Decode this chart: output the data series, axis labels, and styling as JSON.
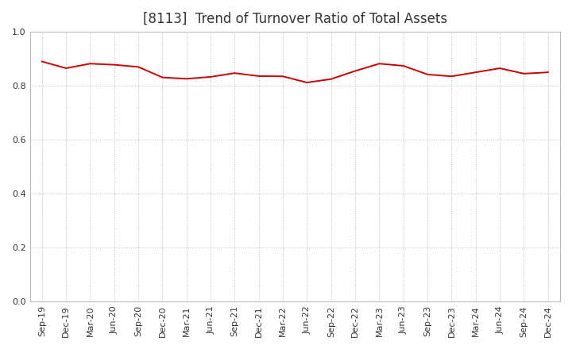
{
  "title": "[8113]  Trend of Turnover Ratio of Total Assets",
  "x_labels": [
    "Sep-19",
    "Dec-19",
    "Mar-20",
    "Jun-20",
    "Sep-20",
    "Dec-20",
    "Mar-21",
    "Jun-21",
    "Sep-21",
    "Dec-21",
    "Mar-22",
    "Jun-22",
    "Sep-22",
    "Dec-22",
    "Mar-23",
    "Jun-23",
    "Sep-23",
    "Dec-23",
    "Mar-24",
    "Jun-24",
    "Sep-24",
    "Dec-24"
  ],
  "y_values": [
    0.89,
    0.865,
    0.882,
    0.878,
    0.87,
    0.831,
    0.826,
    0.833,
    0.847,
    0.836,
    0.835,
    0.812,
    0.825,
    0.855,
    0.882,
    0.874,
    0.842,
    0.835,
    0.85,
    0.865,
    0.845,
    0.85
  ],
  "ylim": [
    0.0,
    1.0
  ],
  "yticks": [
    0.0,
    0.2,
    0.4,
    0.6,
    0.8,
    1.0
  ],
  "line_color": "#cc0000",
  "line_width": 1.4,
  "grid_color": "#bbbbbb",
  "background_color": "#ffffff",
  "title_fontsize": 12,
  "tick_fontsize": 8,
  "title_color": "#333333"
}
